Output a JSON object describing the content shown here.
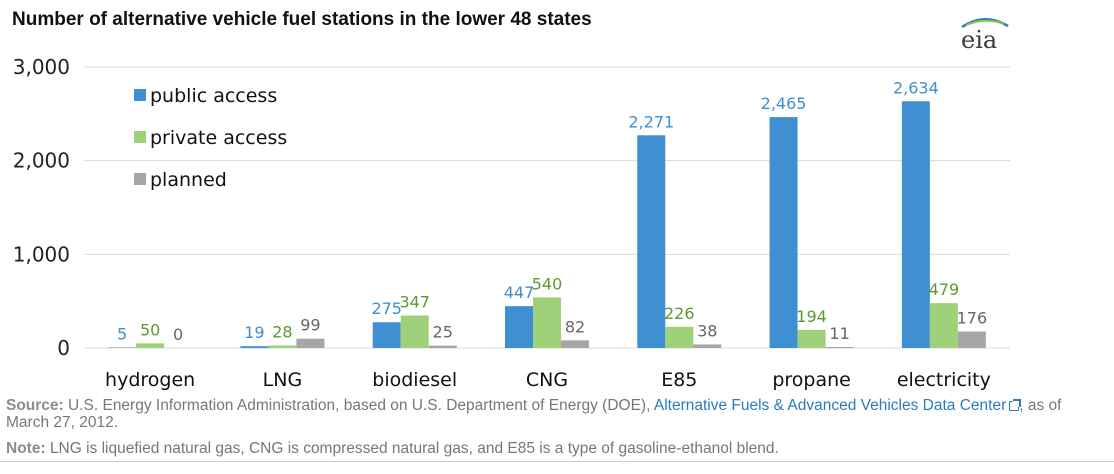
{
  "chart_data": {
    "type": "bar",
    "title": "Number of alternative vehicle fuel stations  in the lower 48 states",
    "categories": [
      "hydrogen",
      "LNG",
      "biodiesel",
      "CNG",
      "E85",
      "propane",
      "electricity"
    ],
    "series": [
      {
        "name": "public access",
        "color": "#3f8fd2",
        "label_color": "#3f8fd2",
        "values": [
          5,
          19,
          275,
          447,
          2271,
          2465,
          2634
        ]
      },
      {
        "name": "private access",
        "color": "#9fd17a",
        "label_color": "#5d9a2e",
        "values": [
          50,
          28,
          347,
          540,
          226,
          194,
          479
        ]
      },
      {
        "name": "planned",
        "color": "#a6a6a6",
        "label_color": "#666666",
        "values": [
          0,
          99,
          25,
          82,
          38,
          11,
          176
        ]
      }
    ],
    "ylim": [
      0,
      3000
    ],
    "yticks": [
      0,
      1000,
      2000,
      3000
    ],
    "ytick_labels": [
      "0",
      "1,000",
      "2,000",
      "3,000"
    ],
    "grid": true,
    "legend": "top-left",
    "xlabel": "",
    "ylabel": ""
  },
  "logo_text": "eia",
  "footer": {
    "source_label": "Source:",
    "source_text": " U.S. Energy Information Administration, based on U.S. Department of Energy (DOE), ",
    "source_link": "Alternative Fuels & Advanced Vehicles Data Center",
    "source_suffix": ", as of March 27, 2012.",
    "note_label": "Note:",
    "note_text": " LNG is liquefied natural gas, CNG is compressed natural gas, and E85 is a type of gasoline-ethanol blend."
  }
}
